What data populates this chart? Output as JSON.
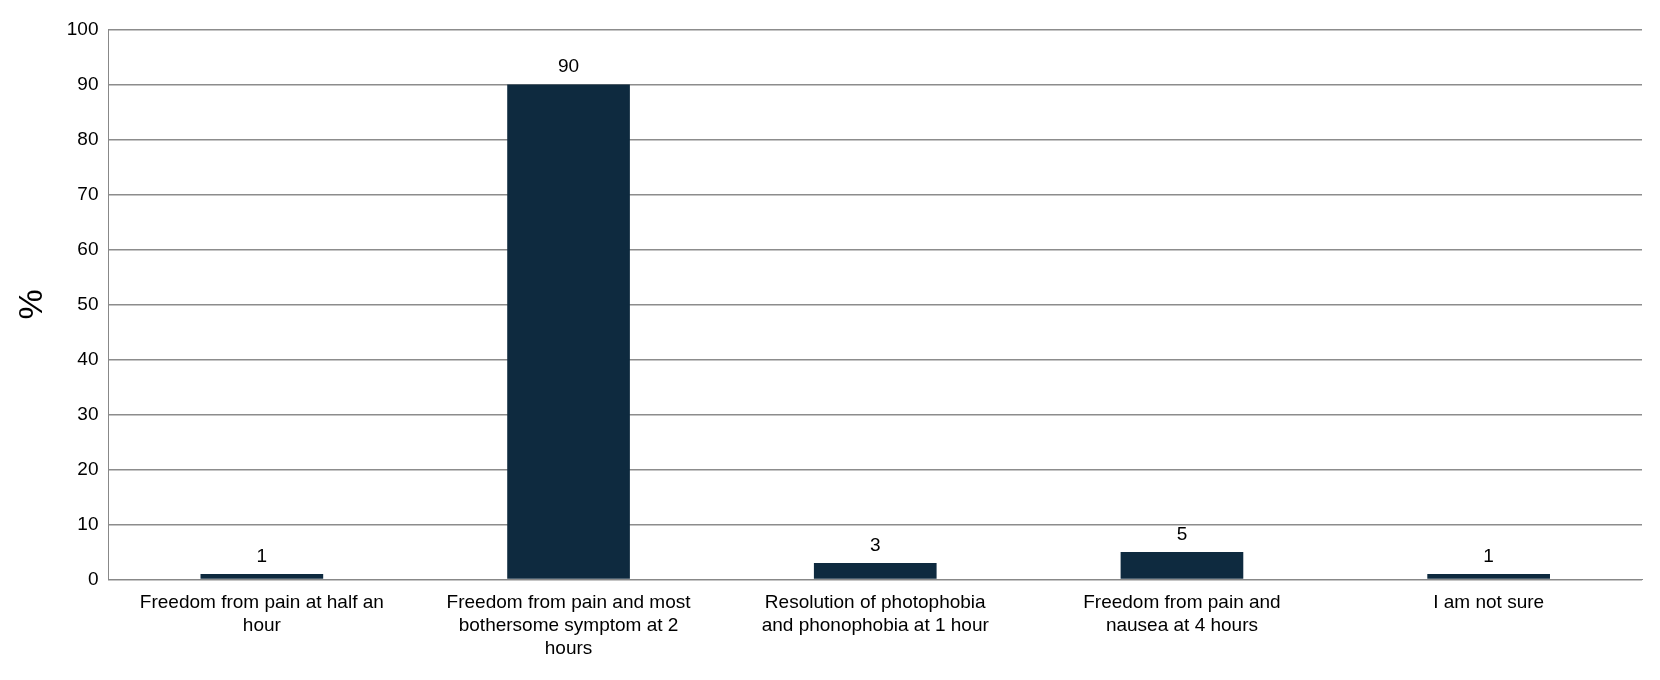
{
  "chart_data": {
    "type": "bar",
    "ylabel": "%",
    "categories": [
      "Freedom from pain at half an hour",
      "Freedom from pain and most bothersome symptom at 2 hours",
      "Resolution of photophobia and phonophobia at 1 hour",
      "Freedom from pain and nausea at 4 hours",
      "I am not sure"
    ],
    "values": [
      1,
      90,
      3,
      5,
      1
    ],
    "color": "#0e2a3f",
    "ylim": [
      0,
      100
    ],
    "yticks": [
      0,
      10,
      20,
      30,
      40,
      50,
      60,
      70,
      80,
      90,
      100
    ],
    "grid": "y",
    "data_labels": true
  }
}
